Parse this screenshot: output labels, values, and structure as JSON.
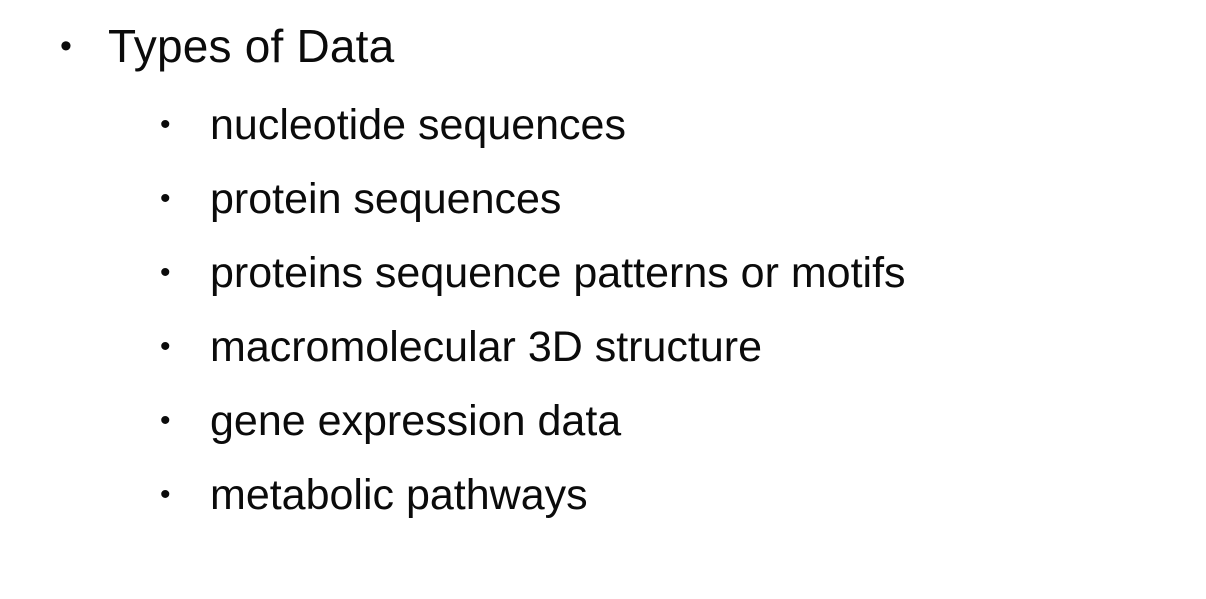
{
  "slide": {
    "heading": "Types of Data",
    "bullet_glyph": "•",
    "items": [
      "nucleotide sequences",
      "protein sequences",
      "proteins sequence patterns or motifs",
      "macromolecular 3D structure",
      "gene expression data",
      "metabolic pathways"
    ]
  }
}
